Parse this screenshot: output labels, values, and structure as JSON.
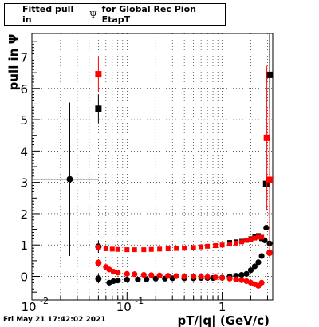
{
  "title": {
    "prefix": "Fitted pull in",
    "symbol": "Ψ",
    "suffix": "for Global Rec Pion EtapT"
  },
  "datestamp": "Fri May 21 17:42:02 2021",
  "chart_data": {
    "type": "scatter",
    "title": "Fitted pull in Ψ for Global Rec Pion EtapT",
    "xlabel": "pT/|q| (GeV/c)",
    "ylabel": "pull in Ψ",
    "xscale": "log",
    "xlim": [
      0.01,
      3.4
    ],
    "ylim": [
      -0.75,
      7.75
    ],
    "grid": true,
    "x_ticks": [
      {
        "v": 0.01,
        "label": "10",
        "sup": "-2"
      },
      {
        "v": 0.1,
        "label": "10",
        "sup": "-1"
      },
      {
        "v": 1,
        "label": "1",
        "sup": ""
      }
    ],
    "y_ticks": [
      0,
      1,
      2,
      3,
      4,
      5,
      6,
      7
    ],
    "series": [
      {
        "color": "#000000",
        "marker": "square",
        "points": [
          {
            "x": 0.05,
            "y": 5.35,
            "err": 0.45
          },
          {
            "x": 2.9,
            "y": 2.95,
            "err": 0.1
          },
          {
            "x": 3.15,
            "y": 6.43,
            "err": 1.3
          },
          {
            "x": 2.2,
            "y": 1.28
          },
          {
            "x": 2.4,
            "y": 1.3
          },
          {
            "x": 2.6,
            "y": 1.2
          },
          {
            "x": 1.2,
            "y": 1.08
          },
          {
            "x": 1.4,
            "y": 1.1
          },
          {
            "x": 1.6,
            "y": 1.12
          },
          {
            "x": 1.8,
            "y": 1.15
          },
          {
            "x": 2.0,
            "y": 1.2
          }
        ]
      },
      {
        "color": "#000000",
        "marker": "circle",
        "points": [
          {
            "x": 0.025,
            "y": 3.1,
            "err": 2.45,
            "xerr": [
              0.01,
              0.05
            ]
          },
          {
            "x": 0.05,
            "y": 0.95,
            "err": 0.2
          },
          {
            "x": 0.05,
            "y": -0.07,
            "err": 0.15
          },
          {
            "x": 0.065,
            "y": -0.2
          },
          {
            "x": 0.072,
            "y": -0.15
          },
          {
            "x": 0.08,
            "y": -0.13
          },
          {
            "x": 0.1,
            "y": -0.1
          },
          {
            "x": 0.13,
            "y": -0.1
          },
          {
            "x": 0.16,
            "y": -0.09
          },
          {
            "x": 0.2,
            "y": -0.07
          },
          {
            "x": 0.25,
            "y": -0.07
          },
          {
            "x": 0.3,
            "y": -0.06
          },
          {
            "x": 0.4,
            "y": -0.06
          },
          {
            "x": 0.5,
            "y": -0.06
          },
          {
            "x": 0.6,
            "y": -0.05
          },
          {
            "x": 0.7,
            "y": -0.05
          },
          {
            "x": 0.8,
            "y": -0.05
          },
          {
            "x": 1.0,
            "y": -0.04
          },
          {
            "x": 1.2,
            "y": 0.0
          },
          {
            "x": 1.4,
            "y": 0.02
          },
          {
            "x": 1.6,
            "y": 0.05
          },
          {
            "x": 1.8,
            "y": 0.08
          },
          {
            "x": 2.0,
            "y": 0.2
          },
          {
            "x": 2.2,
            "y": 0.32
          },
          {
            "x": 2.4,
            "y": 0.45
          },
          {
            "x": 2.6,
            "y": 0.65
          },
          {
            "x": 2.8,
            "y": 1.15
          },
          {
            "x": 2.9,
            "y": 1.55
          },
          {
            "x": 3.15,
            "y": 1.05
          }
        ]
      },
      {
        "color": "#ff0000",
        "marker": "square",
        "points": [
          {
            "x": 0.05,
            "y": 6.45,
            "err": 0.55
          },
          {
            "x": 2.95,
            "y": 4.42,
            "err": 2.3
          },
          {
            "x": 3.15,
            "y": 3.08,
            "err": 2.3
          },
          {
            "x": 0.05,
            "y": 0.93
          },
          {
            "x": 0.06,
            "y": 0.88
          },
          {
            "x": 0.07,
            "y": 0.87
          },
          {
            "x": 0.08,
            "y": 0.86
          },
          {
            "x": 0.1,
            "y": 0.85
          },
          {
            "x": 0.12,
            "y": 0.85
          },
          {
            "x": 0.15,
            "y": 0.85
          },
          {
            "x": 0.18,
            "y": 0.86
          },
          {
            "x": 0.22,
            "y": 0.87
          },
          {
            "x": 0.27,
            "y": 0.88
          },
          {
            "x": 0.33,
            "y": 0.89
          },
          {
            "x": 0.4,
            "y": 0.9
          },
          {
            "x": 0.5,
            "y": 0.92
          },
          {
            "x": 0.6,
            "y": 0.94
          },
          {
            "x": 0.7,
            "y": 0.96
          },
          {
            "x": 0.85,
            "y": 0.98
          },
          {
            "x": 1.0,
            "y": 1.0
          },
          {
            "x": 1.2,
            "y": 1.03
          },
          {
            "x": 1.4,
            "y": 1.06
          },
          {
            "x": 1.6,
            "y": 1.1
          },
          {
            "x": 1.8,
            "y": 1.15
          },
          {
            "x": 2.0,
            "y": 1.18
          },
          {
            "x": 2.2,
            "y": 1.22
          },
          {
            "x": 2.4,
            "y": 1.25
          },
          {
            "x": 2.6,
            "y": 1.25
          }
        ]
      },
      {
        "color": "#ff0000",
        "marker": "circle",
        "points": [
          {
            "x": 0.05,
            "y": 0.43,
            "err": 0.12
          },
          {
            "x": 0.06,
            "y": 0.3
          },
          {
            "x": 0.065,
            "y": 0.22
          },
          {
            "x": 0.072,
            "y": 0.15
          },
          {
            "x": 0.08,
            "y": 0.12
          },
          {
            "x": 0.1,
            "y": 0.08
          },
          {
            "x": 0.12,
            "y": 0.07
          },
          {
            "x": 0.15,
            "y": 0.05
          },
          {
            "x": 0.18,
            "y": 0.04
          },
          {
            "x": 0.22,
            "y": 0.03
          },
          {
            "x": 0.27,
            "y": 0.02
          },
          {
            "x": 0.33,
            "y": 0.01
          },
          {
            "x": 0.4,
            "y": 0.0
          },
          {
            "x": 0.5,
            "y": 0.0
          },
          {
            "x": 0.6,
            "y": 0.0
          },
          {
            "x": 0.7,
            "y": -0.02
          },
          {
            "x": 0.85,
            "y": -0.03
          },
          {
            "x": 1.0,
            "y": -0.05
          },
          {
            "x": 1.2,
            "y": -0.07
          },
          {
            "x": 1.4,
            "y": -0.1
          },
          {
            "x": 1.6,
            "y": -0.12
          },
          {
            "x": 1.8,
            "y": -0.15
          },
          {
            "x": 2.0,
            "y": -0.2
          },
          {
            "x": 2.2,
            "y": -0.25
          },
          {
            "x": 2.4,
            "y": -0.3
          },
          {
            "x": 2.6,
            "y": -0.2
          },
          {
            "x": 3.15,
            "y": 0.75,
            "err": 0.15
          }
        ]
      }
    ]
  }
}
